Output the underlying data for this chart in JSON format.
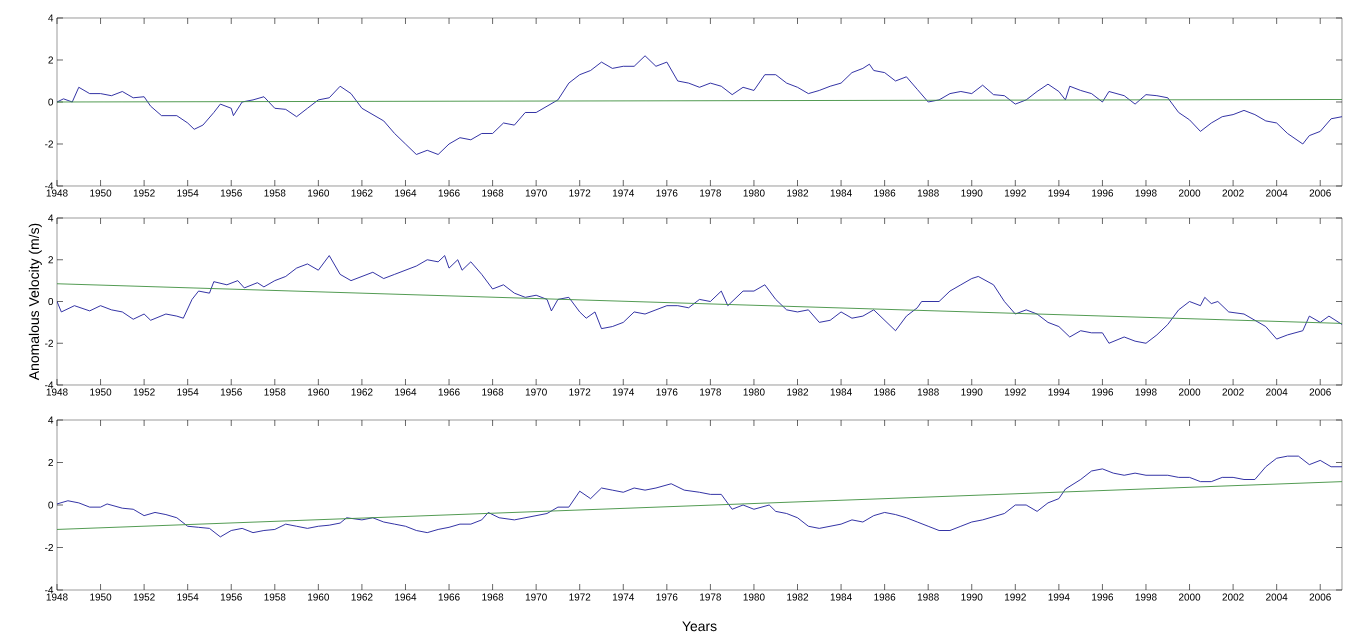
{
  "chart_data": [
    {
      "type": "line",
      "xlim": [
        1948,
        2007
      ],
      "ylim": [
        -4,
        4
      ],
      "xticks": [
        1948,
        1950,
        1952,
        1954,
        1956,
        1958,
        1960,
        1962,
        1964,
        1966,
        1968,
        1970,
        1972,
        1974,
        1976,
        1978,
        1980,
        1982,
        1984,
        1986,
        1988,
        1990,
        1992,
        1994,
        1996,
        1998,
        2000,
        2002,
        2004,
        2006
      ],
      "yticks": [
        -4,
        -2,
        0,
        2,
        4
      ],
      "grid": false,
      "marker": "none",
      "line_style": "solid",
      "series": [
        {
          "color": "#1c1c9a",
          "x": [
            1948.0,
            1948.3,
            1948.7,
            1949.0,
            1949.5,
            1950.0,
            1950.5,
            1951.0,
            1951.5,
            1952.0,
            1952.3,
            1952.8,
            1953.5,
            1954.0,
            1954.3,
            1954.7,
            1955.2,
            1955.5,
            1956.0,
            1956.1,
            1956.5,
            1957.0,
            1957.5,
            1958.0,
            1958.5,
            1959.0,
            1959.5,
            1960.0,
            1960.5,
            1961.0,
            1961.5,
            1962.0,
            1962.5,
            1963.0,
            1963.5,
            1964.0,
            1964.5,
            1965.0,
            1965.5,
            1966.0,
            1966.5,
            1967.0,
            1967.5,
            1968.0,
            1968.5,
            1969.0,
            1969.5,
            1970.0,
            1970.5,
            1971.0,
            1971.5,
            1972.0,
            1972.5,
            1973.0,
            1973.5,
            1974.0,
            1974.5,
            1975.0,
            1975.5,
            1976.0,
            1976.5,
            1977.0,
            1977.5,
            1978.0,
            1978.5,
            1979.0,
            1979.5,
            1980.0,
            1980.5,
            1981.0,
            1981.5,
            1982.0,
            1982.5,
            1983.0,
            1983.5,
            1984.0,
            1984.5,
            1985.0,
            1985.3,
            1985.5,
            1986.0,
            1986.5,
            1987.0,
            1987.5,
            1988.0,
            1988.5,
            1989.0,
            1989.5,
            1990.0,
            1990.5,
            1991.0,
            1991.5,
            1992.0,
            1992.5,
            1993.0,
            1993.5,
            1994.0,
            1994.3,
            1994.5,
            1995.0,
            1995.5,
            1996.0,
            1996.3,
            1997.0,
            1997.5,
            1998.0,
            1998.5,
            1999.0,
            1999.5,
            2000.0,
            2000.5,
            2001.0,
            2001.5,
            2002.0,
            2002.5,
            2003.0,
            2003.5,
            2004.0,
            2004.5,
            2005.2,
            2005.5,
            2006.0,
            2006.5,
            2007.0
          ],
          "values": [
            0.0,
            0.15,
            0.0,
            0.7,
            0.4,
            0.4,
            0.3,
            0.5,
            0.2,
            0.25,
            -0.2,
            -0.65,
            -0.65,
            -1.0,
            -1.3,
            -1.1,
            -0.5,
            -0.1,
            -0.3,
            -0.65,
            0.0,
            0.1,
            0.25,
            -0.3,
            -0.35,
            -0.7,
            -0.3,
            0.1,
            0.2,
            0.75,
            0.4,
            -0.3,
            -0.6,
            -0.9,
            -1.5,
            -2.0,
            -2.5,
            -2.3,
            -2.5,
            -2.0,
            -1.7,
            -1.8,
            -1.5,
            -1.5,
            -1.0,
            -1.1,
            -0.5,
            -0.5,
            -0.2,
            0.1,
            0.9,
            1.3,
            1.5,
            1.9,
            1.6,
            1.7,
            1.7,
            2.2,
            1.7,
            1.9,
            1.0,
            0.9,
            0.7,
            0.9,
            0.75,
            0.35,
            0.7,
            0.55,
            1.3,
            1.3,
            0.9,
            0.7,
            0.4,
            0.55,
            0.75,
            0.9,
            1.4,
            1.6,
            1.8,
            1.5,
            1.4,
            1.0,
            1.2,
            0.6,
            0.0,
            0.1,
            0.4,
            0.5,
            0.4,
            0.8,
            0.35,
            0.3,
            -0.1,
            0.1,
            0.5,
            0.85,
            0.5,
            0.1,
            0.75,
            0.55,
            0.4,
            0.0,
            0.5,
            0.3,
            -0.1,
            0.35,
            0.3,
            0.2,
            -0.5,
            -0.85,
            -1.4,
            -1.0,
            -0.7,
            -0.6,
            -0.4,
            -0.6,
            -0.9,
            -1.0,
            -1.5,
            -2.0,
            -1.6,
            -1.4,
            -0.8,
            -0.7
          ]
        },
        {
          "type": "line",
          "color": "#3f8f3f",
          "x": [
            1948,
            2007
          ],
          "values": [
            0.0,
            0.12
          ]
        }
      ]
    },
    {
      "type": "line",
      "ylabel": "Anomalous Velocity (m/s)",
      "xlim": [
        1948,
        2007
      ],
      "ylim": [
        -4,
        4
      ],
      "xticks": [
        1948,
        1950,
        1952,
        1954,
        1956,
        1958,
        1960,
        1962,
        1964,
        1966,
        1968,
        1970,
        1972,
        1974,
        1976,
        1978,
        1980,
        1982,
        1984,
        1986,
        1988,
        1990,
        1992,
        1994,
        1996,
        1998,
        2000,
        2002,
        2004,
        2006
      ],
      "yticks": [
        -4,
        -2,
        0,
        2,
        4
      ],
      "grid": false,
      "marker": "none",
      "line_style": "solid",
      "series": [
        {
          "color": "#1c1c9a",
          "x": [
            1948.0,
            1948.2,
            1948.8,
            1949.5,
            1950.0,
            1950.5,
            1951.0,
            1951.5,
            1952.0,
            1952.3,
            1953.0,
            1953.5,
            1953.8,
            1954.2,
            1954.5,
            1955.0,
            1955.2,
            1955.8,
            1956.3,
            1956.6,
            1957.2,
            1957.5,
            1958.0,
            1958.5,
            1959.0,
            1959.5,
            1960.0,
            1960.5,
            1961.0,
            1961.5,
            1962.0,
            1962.5,
            1963.0,
            1963.5,
            1964.0,
            1964.5,
            1965.0,
            1965.5,
            1965.8,
            1966.0,
            1966.4,
            1966.6,
            1967.0,
            1967.5,
            1968.0,
            1968.5,
            1969.0,
            1969.5,
            1970.0,
            1970.5,
            1970.7,
            1971.0,
            1971.5,
            1972.0,
            1972.3,
            1972.7,
            1973.0,
            1973.5,
            1974.0,
            1974.5,
            1975.0,
            1975.5,
            1976.0,
            1976.5,
            1977.0,
            1977.5,
            1978.0,
            1978.5,
            1978.8,
            1979.5,
            1980.0,
            1980.5,
            1981.0,
            1981.5,
            1982.0,
            1982.5,
            1983.0,
            1983.5,
            1984.0,
            1984.5,
            1985.0,
            1985.5,
            1986.0,
            1986.5,
            1987.0,
            1987.5,
            1987.7,
            1988.5,
            1989.0,
            1989.5,
            1990.0,
            1990.3,
            1991.0,
            1991.5,
            1992.0,
            1992.5,
            1993.0,
            1993.5,
            1994.0,
            1994.5,
            1995.0,
            1995.5,
            1996.0,
            1996.3,
            1997.0,
            1997.5,
            1998.0,
            1998.5,
            1999.0,
            1999.5,
            2000.0,
            2000.5,
            2000.7,
            2001.0,
            2001.3,
            2001.8,
            2002.5,
            2003.0,
            2003.5,
            2004.0,
            2004.5,
            2005.2,
            2005.5,
            2006.0,
            2006.4,
            2007.0
          ],
          "values": [
            0.0,
            -0.5,
            -0.2,
            -0.45,
            -0.2,
            -0.4,
            -0.5,
            -0.85,
            -0.6,
            -0.9,
            -0.6,
            -0.7,
            -0.8,
            0.1,
            0.5,
            0.4,
            0.95,
            0.8,
            1.0,
            0.65,
            0.9,
            0.7,
            1.0,
            1.2,
            1.6,
            1.8,
            1.5,
            2.2,
            1.3,
            1.0,
            1.2,
            1.4,
            1.1,
            1.3,
            1.5,
            1.7,
            2.0,
            1.9,
            2.2,
            1.6,
            2.0,
            1.5,
            1.9,
            1.3,
            0.6,
            0.8,
            0.4,
            0.2,
            0.3,
            0.1,
            -0.45,
            0.1,
            0.2,
            -0.5,
            -0.8,
            -0.5,
            -1.3,
            -1.2,
            -1.0,
            -0.5,
            -0.6,
            -0.4,
            -0.2,
            -0.2,
            -0.3,
            0.1,
            0.0,
            0.5,
            -0.2,
            0.5,
            0.5,
            0.8,
            0.1,
            -0.4,
            -0.5,
            -0.4,
            -1.0,
            -0.9,
            -0.5,
            -0.8,
            -0.7,
            -0.4,
            -0.9,
            -1.4,
            -0.7,
            -0.3,
            0.0,
            0.0,
            0.5,
            0.8,
            1.1,
            1.2,
            0.8,
            0.0,
            -0.6,
            -0.4,
            -0.6,
            -1.0,
            -1.2,
            -1.7,
            -1.4,
            -1.5,
            -1.5,
            -2.0,
            -1.7,
            -1.9,
            -2.0,
            -1.6,
            -1.1,
            -0.4,
            0.0,
            -0.2,
            0.2,
            -0.1,
            0.0,
            -0.5,
            -0.6,
            -0.9,
            -1.2,
            -1.8,
            -1.6,
            -1.4,
            -0.7,
            -1.0,
            -0.7,
            -1.1
          ]
        },
        {
          "type": "line",
          "color": "#3f8f3f",
          "x": [
            1948,
            2007
          ],
          "values": [
            0.85,
            -1.05
          ]
        }
      ]
    },
    {
      "type": "line",
      "xlabel": "Years",
      "xlim": [
        1948,
        2007
      ],
      "ylim": [
        -4,
        4
      ],
      "xticks": [
        1948,
        1950,
        1952,
        1954,
        1956,
        1958,
        1960,
        1962,
        1964,
        1966,
        1968,
        1970,
        1972,
        1974,
        1976,
        1978,
        1980,
        1982,
        1984,
        1986,
        1988,
        1990,
        1992,
        1994,
        1996,
        1998,
        2000,
        2002,
        2004,
        2006
      ],
      "yticks": [
        -4,
        -2,
        0,
        2,
        4
      ],
      "grid": false,
      "marker": "none",
      "line_style": "solid",
      "series": [
        {
          "color": "#1c1c9a",
          "x": [
            1948.0,
            1948.5,
            1949.0,
            1949.5,
            1950.0,
            1950.3,
            1951.0,
            1951.5,
            1952.0,
            1952.5,
            1953.0,
            1953.5,
            1954.0,
            1954.5,
            1955.0,
            1955.5,
            1956.0,
            1956.5,
            1957.0,
            1957.5,
            1958.0,
            1958.5,
            1959.0,
            1959.5,
            1960.0,
            1960.5,
            1961.0,
            1961.3,
            1962.0,
            1962.5,
            1963.0,
            1963.5,
            1964.0,
            1964.5,
            1965.0,
            1965.5,
            1966.0,
            1966.5,
            1967.0,
            1967.5,
            1967.8,
            1968.3,
            1969.0,
            1969.5,
            1970.0,
            1970.5,
            1971.0,
            1971.5,
            1972.0,
            1972.5,
            1973.0,
            1973.5,
            1974.0,
            1974.5,
            1975.0,
            1975.5,
            1976.2,
            1976.8,
            1977.5,
            1978.0,
            1978.5,
            1979.0,
            1979.5,
            1980.0,
            1980.7,
            1981.0,
            1981.5,
            1982.0,
            1982.5,
            1983.0,
            1983.5,
            1984.0,
            1984.5,
            1985.0,
            1985.5,
            1986.0,
            1986.5,
            1987.0,
            1987.5,
            1988.0,
            1988.5,
            1989.0,
            1989.5,
            1990.0,
            1990.5,
            1991.0,
            1991.5,
            1992.0,
            1992.5,
            1993.0,
            1993.5,
            1994.0,
            1994.3,
            1995.0,
            1995.5,
            1996.0,
            1996.5,
            1997.0,
            1997.5,
            1998.0,
            1998.5,
            1999.0,
            1999.5,
            2000.0,
            2000.5,
            2001.0,
            2001.5,
            2002.0,
            2002.5,
            2003.0,
            2003.5,
            2004.0,
            2004.5,
            2005.0,
            2005.5,
            2006.0,
            2006.5,
            2007.0
          ],
          "values": [
            0.05,
            0.2,
            0.1,
            -0.1,
            -0.1,
            0.05,
            -0.15,
            -0.2,
            -0.5,
            -0.35,
            -0.45,
            -0.6,
            -1.0,
            -1.05,
            -1.1,
            -1.5,
            -1.2,
            -1.1,
            -1.3,
            -1.2,
            -1.15,
            -0.9,
            -1.0,
            -1.1,
            -1.0,
            -0.95,
            -0.85,
            -0.6,
            -0.7,
            -0.6,
            -0.8,
            -0.9,
            -1.0,
            -1.2,
            -1.3,
            -1.15,
            -1.05,
            -0.9,
            -0.9,
            -0.7,
            -0.35,
            -0.6,
            -0.7,
            -0.6,
            -0.5,
            -0.4,
            -0.1,
            -0.1,
            0.65,
            0.3,
            0.8,
            0.7,
            0.6,
            0.8,
            0.7,
            0.8,
            1.0,
            0.7,
            0.6,
            0.5,
            0.5,
            -0.2,
            0.0,
            -0.2,
            0.0,
            -0.3,
            -0.4,
            -0.6,
            -1.0,
            -1.1,
            -1.0,
            -0.9,
            -0.7,
            -0.8,
            -0.5,
            -0.35,
            -0.45,
            -0.6,
            -0.8,
            -1.0,
            -1.2,
            -1.2,
            -1.0,
            -0.8,
            -0.7,
            -0.55,
            -0.4,
            0.0,
            0.0,
            -0.3,
            0.1,
            0.3,
            0.75,
            1.2,
            1.6,
            1.7,
            1.5,
            1.4,
            1.5,
            1.4,
            1.4,
            1.4,
            1.3,
            1.3,
            1.1,
            1.1,
            1.3,
            1.3,
            1.2,
            1.2,
            1.8,
            2.2,
            2.3,
            2.3,
            1.9,
            2.1,
            1.8,
            1.8
          ]
        },
        {
          "type": "line",
          "color": "#3f8f3f",
          "x": [
            1948,
            2007
          ],
          "values": [
            -1.15,
            1.1
          ]
        }
      ]
    }
  ]
}
